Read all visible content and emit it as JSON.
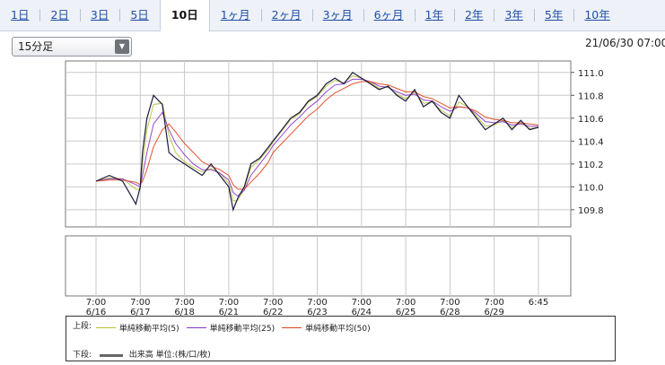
{
  "tabs": [
    "1日",
    "2日",
    "3日",
    "5日",
    "10日",
    "1ヶ月",
    "2ヶ月",
    "3ヶ月",
    "6ヶ月",
    "1年",
    "2年",
    "3年",
    "5年",
    "10年"
  ],
  "active_tab": "10日",
  "interval_select": {
    "value": "15分足"
  },
  "datetime": "21/06/30 07:00",
  "legend": {
    "upper_label": "上段:",
    "lower_label": "下段:",
    "volume_label": "出来高 単位:(株/口/枚)",
    "ma": [
      {
        "label": "単純移動平均(5)",
        "color": "#b8bf3a"
      },
      {
        "label": "単純移動平均(25)",
        "color": "#8a35c8"
      },
      {
        "label": "単純移動平均(50)",
        "color": "#e0421a"
      }
    ]
  },
  "chart_data": {
    "type": "line",
    "title": "",
    "xlabel": "",
    "ylabel": "",
    "ylim": [
      109.65,
      111.1
    ],
    "yticks": [
      109.8,
      110.0,
      110.2,
      110.4,
      110.6,
      110.8,
      111.0
    ],
    "grid": true,
    "legend_position": "bottom",
    "x_tick_labels": [
      {
        "time": "7:00",
        "date": "6/16"
      },
      {
        "time": "7:00",
        "date": "6/17"
      },
      {
        "time": "7:00",
        "date": "6/18"
      },
      {
        "time": "7:00",
        "date": "6/21"
      },
      {
        "time": "7:00",
        "date": "6/22"
      },
      {
        "time": "7:00",
        "date": "6/23"
      },
      {
        "time": "7:00",
        "date": "6/24"
      },
      {
        "time": "7:00",
        "date": "6/25"
      },
      {
        "time": "7:00",
        "date": "6/28"
      },
      {
        "time": "7:00",
        "date": "6/29"
      },
      {
        "time": "6:45",
        "date": ""
      }
    ],
    "price_series": {
      "name": "",
      "color": "#1a1a40",
      "x": [
        0,
        0.3,
        0.6,
        0.9,
        1.0,
        1.05,
        1.15,
        1.3,
        1.5,
        1.65,
        1.8,
        2.0,
        2.2,
        2.4,
        2.6,
        2.8,
        3.0,
        3.1,
        3.2,
        3.35,
        3.5,
        3.7,
        3.9,
        4.0,
        4.2,
        4.4,
        4.6,
        4.8,
        5.0,
        5.2,
        5.4,
        5.6,
        5.8,
        6.0,
        6.2,
        6.4,
        6.6,
        6.8,
        7.0,
        7.2,
        7.4,
        7.6,
        7.8,
        8.0,
        8.2,
        8.4,
        8.6,
        8.8,
        9.0,
        9.2,
        9.4,
        9.6,
        9.8,
        10.0
      ],
      "values": [
        110.05,
        110.1,
        110.05,
        109.85,
        110.0,
        110.3,
        110.6,
        110.8,
        110.72,
        110.3,
        110.25,
        110.2,
        110.15,
        110.1,
        110.2,
        110.1,
        110.0,
        109.8,
        109.9,
        110.0,
        110.2,
        110.25,
        110.35,
        110.4,
        110.5,
        110.6,
        110.65,
        110.75,
        110.8,
        110.9,
        110.95,
        110.9,
        111.0,
        110.95,
        110.9,
        110.85,
        110.88,
        110.8,
        110.75,
        110.85,
        110.7,
        110.75,
        110.65,
        110.6,
        110.8,
        110.7,
        110.6,
        110.5,
        110.55,
        110.6,
        110.5,
        110.58,
        110.5,
        110.52
      ]
    },
    "ma_series": [
      {
        "name": "単純移動平均(5)",
        "color": "#b8bf3a",
        "values": [
          110.05,
          110.08,
          110.07,
          109.98,
          109.98,
          110.2,
          110.5,
          110.72,
          110.73,
          110.45,
          110.3,
          110.22,
          110.17,
          110.13,
          110.16,
          110.12,
          110.03,
          109.88,
          109.88,
          109.98,
          110.17,
          110.24,
          110.33,
          110.39,
          110.49,
          110.59,
          110.64,
          110.74,
          110.79,
          110.88,
          110.93,
          110.91,
          110.97,
          110.95,
          110.91,
          110.86,
          110.87,
          110.81,
          110.77,
          110.83,
          110.73,
          110.74,
          110.67,
          110.62,
          110.74,
          110.7,
          110.62,
          110.53,
          110.54,
          110.58,
          110.52,
          110.56,
          110.51,
          110.52
        ]
      },
      {
        "name": "単純移動平均(25)",
        "color": "#8a35c8",
        "values": [
          110.05,
          110.07,
          110.07,
          110.02,
          110.0,
          110.1,
          110.3,
          110.55,
          110.65,
          110.5,
          110.38,
          110.28,
          110.2,
          110.15,
          110.15,
          110.12,
          110.06,
          109.95,
          109.92,
          109.97,
          110.1,
          110.2,
          110.3,
          110.36,
          110.45,
          110.54,
          110.61,
          110.69,
          110.75,
          110.83,
          110.89,
          110.9,
          110.94,
          110.94,
          110.92,
          110.88,
          110.87,
          110.83,
          110.8,
          110.81,
          110.76,
          110.75,
          110.7,
          110.66,
          110.7,
          110.69,
          110.64,
          110.57,
          110.56,
          110.57,
          110.54,
          110.55,
          110.53,
          110.53
        ]
      },
      {
        "name": "単純移動平均(50)",
        "color": "#e0421a",
        "values": [
          110.05,
          110.06,
          110.06,
          110.04,
          110.02,
          110.05,
          110.15,
          110.35,
          110.5,
          110.55,
          110.48,
          110.38,
          110.3,
          110.22,
          110.18,
          110.15,
          110.1,
          110.02,
          109.98,
          109.98,
          110.04,
          110.12,
          110.22,
          110.3,
          110.38,
          110.46,
          110.54,
          110.62,
          110.68,
          110.76,
          110.82,
          110.86,
          110.9,
          110.92,
          110.92,
          110.9,
          110.89,
          110.86,
          110.83,
          110.83,
          110.79,
          110.77,
          110.73,
          110.69,
          110.7,
          110.69,
          110.66,
          110.61,
          110.59,
          110.58,
          110.56,
          110.56,
          110.55,
          110.54
        ]
      }
    ],
    "volume": []
  }
}
